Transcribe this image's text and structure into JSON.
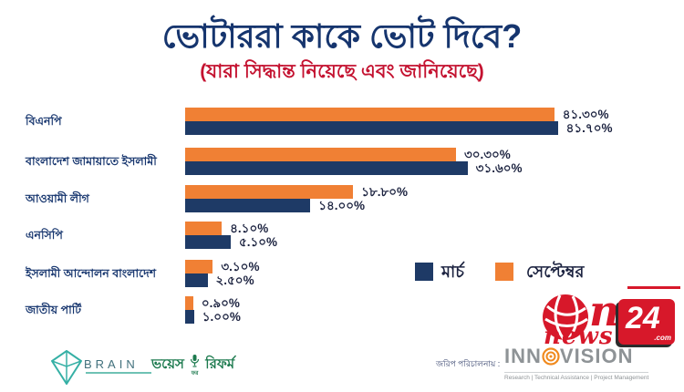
{
  "header": {
    "title": "ভোটাররা কাকে ভোট দিবে?",
    "subtitle": "(যারা সিদ্ধান্ত নিয়েছে এবং জানিয়েছে)"
  },
  "chart_data": {
    "type": "bar",
    "orientation": "horizontal",
    "title": "ভোটাররা কাকে ভোট দিবে?",
    "subtitle": "(যারা সিদ্ধান্ত নিয়েছে এবং জানিয়েছে)",
    "categories": [
      "বিএনপি",
      "বাংলাদেশ জামায়াতে ইসলামী",
      "আওয়ামী লীগ",
      "এনসিপি",
      "ইসলামী আন্দোলন বাংলাদেশ",
      "জাতীয় পার্টি"
    ],
    "series": [
      {
        "key": "september",
        "name": "সেপ্টেম্বর",
        "color": "#F08034",
        "values": [
          41.3,
          30.3,
          18.8,
          4.1,
          3.1,
          0.9
        ],
        "labels": [
          "৪১.৩০%",
          "৩০.৩০%",
          "১৮.৮০%",
          "৪.১০%",
          "৩.১০%",
          "০.৯০%"
        ]
      },
      {
        "key": "march",
        "name": "মার্চ",
        "color": "#1E3A66",
        "values": [
          41.7,
          31.6,
          14.0,
          5.1,
          2.5,
          1.0
        ],
        "labels": [
          "৪১.৭০%",
          "৩১.৬০%",
          "১৪.০০%",
          "৫.১০%",
          "২.৫০%",
          "১.০০%"
        ]
      }
    ],
    "xlim": [
      0,
      45
    ],
    "grid": false,
    "legend_position": "middle-right",
    "value_label_format": "bengali-percent"
  },
  "legend": {
    "march": "মার্চ",
    "september": "সেপ্টেম্বর"
  },
  "footer": {
    "brain": "BRAIN",
    "vfr_word1": "ভয়েস",
    "vfr_word2": "ফর",
    "vfr_word3": "রিফর্ম",
    "survey_by": "জরিপ পরিচালনায় :",
    "inno_part1": "INN",
    "inno_part2": "VISION",
    "innovision_tagline": "Research | Technical Assistance | Project Management",
    "onnews_n": "n",
    "onnews_news": "news",
    "onnews_24": "24",
    "onnews_dotcom": ".com"
  },
  "colors": {
    "title_navy": "#16356E",
    "subtitle_red": "#C41230",
    "bar_navy": "#1E3A66",
    "bar_orange": "#F08034",
    "value_text": "#1C2340",
    "brain_teal": "#35B0A5",
    "vfr_green": "#1C7A4E",
    "innovision_gray": "#8E9396",
    "innovision_orange": "#F08A1E",
    "onnews_red": "#D7182A"
  }
}
